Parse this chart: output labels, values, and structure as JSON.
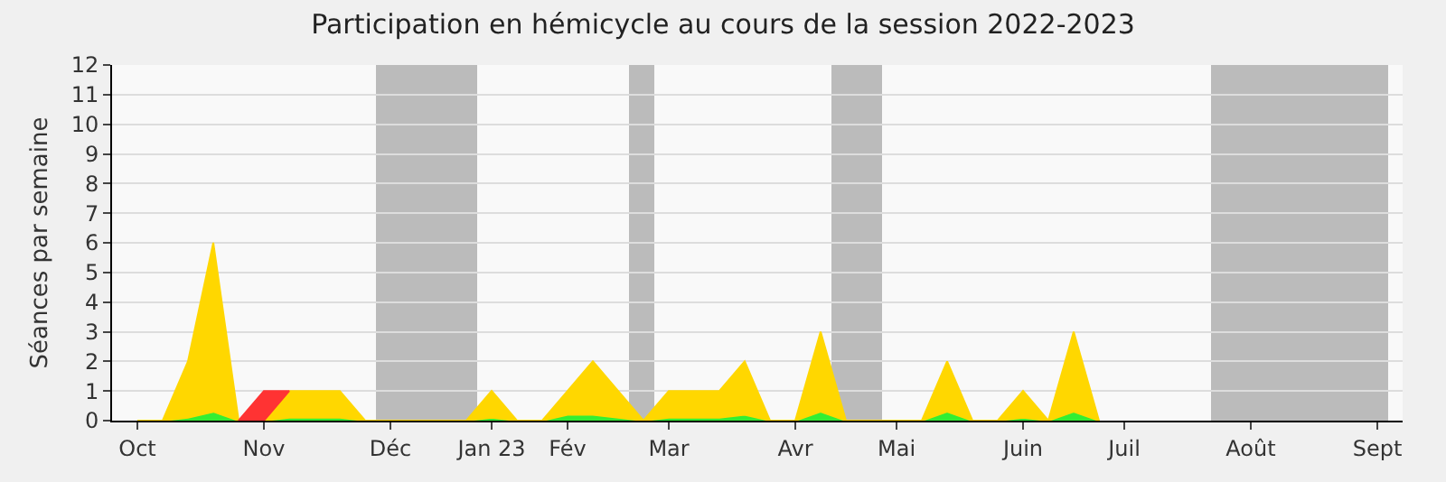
{
  "chart_data": {
    "type": "area",
    "title": "Participation en hémicycle au cours de la session 2022-2023",
    "ylabel": "Séances par semaine",
    "stacked": true,
    "x": [
      "2022-10-09",
      "2022-10-16",
      "2022-10-23",
      "2022-10-30",
      "2022-11-06",
      "2022-11-13",
      "2022-11-20",
      "2022-11-27",
      "2022-12-04",
      "2022-12-11",
      "2022-12-18",
      "2022-12-25",
      "2023-01-01",
      "2023-01-08",
      "2023-01-15",
      "2023-01-22",
      "2023-01-29",
      "2023-02-05",
      "2023-02-12",
      "2023-02-19",
      "2023-02-26",
      "2023-03-05",
      "2023-03-12",
      "2023-03-19",
      "2023-03-26",
      "2023-04-02",
      "2023-04-09",
      "2023-04-16",
      "2023-04-23",
      "2023-04-30",
      "2023-05-07",
      "2023-05-14",
      "2023-05-21",
      "2023-05-28",
      "2023-06-04",
      "2023-06-11",
      "2023-06-18",
      "2023-06-25",
      "2023-07-02"
    ],
    "series": [
      {
        "color": "#33ee33",
        "values": [
          0,
          0,
          0.1,
          0.3,
          0,
          0,
          0.1,
          0.1,
          0.1,
          0,
          0,
          0,
          0,
          0,
          0.1,
          0,
          0,
          0.2,
          0.2,
          0.1,
          0,
          0.1,
          0.1,
          0.1,
          0.2,
          0,
          0,
          0.3,
          0,
          0,
          0,
          0,
          0.3,
          0,
          0,
          0.1,
          0,
          0.3,
          0
        ]
      },
      {
        "color": "#ffd700",
        "values": [
          0,
          0,
          1.9,
          5.7,
          0,
          0,
          0.9,
          0.9,
          0.9,
          0,
          0,
          0,
          0,
          0,
          0.9,
          0,
          0,
          0.8,
          1.8,
          0.9,
          0,
          0.9,
          0.9,
          0.9,
          1.8,
          0,
          0,
          2.7,
          0,
          0,
          0,
          0,
          1.7,
          0,
          0,
          0.9,
          0,
          2.7,
          0
        ]
      },
      {
        "color": "#ff3333",
        "values": [
          null,
          null,
          null,
          null,
          0,
          1,
          0,
          null,
          null,
          null,
          null,
          null,
          null,
          null,
          null,
          null,
          null,
          null,
          null,
          null,
          null,
          null,
          null,
          null,
          null,
          null,
          null,
          null,
          null,
          null,
          null,
          null,
          null,
          null,
          null,
          null,
          null,
          null,
          null
        ]
      }
    ],
    "xlim": [
      "2022-10-02",
      "2023-09-24"
    ],
    "xticks": [
      {
        "value": "2022-10-09",
        "label": "Oct"
      },
      {
        "value": "2022-11-13",
        "label": "Nov"
      },
      {
        "value": "2022-12-18",
        "label": "Déc"
      },
      {
        "value": "2023-01-15",
        "label": "Jan 23"
      },
      {
        "value": "2023-02-05",
        "label": "Fév"
      },
      {
        "value": "2023-03-05",
        "label": "Mar"
      },
      {
        "value": "2023-04-09",
        "label": "Avr"
      },
      {
        "value": "2023-05-07",
        "label": "Mai"
      },
      {
        "value": "2023-06-11",
        "label": "Juin"
      },
      {
        "value": "2023-07-09",
        "label": "Juil"
      },
      {
        "value": "2023-08-13",
        "label": "Août"
      },
      {
        "value": "2023-09-17",
        "label": "Sept"
      }
    ],
    "ylim": [
      0,
      12
    ],
    "yticks": [
      0,
      1,
      2,
      3,
      4,
      5,
      6,
      7,
      8,
      9,
      10,
      11,
      12
    ],
    "bands": [
      {
        "axis": "x",
        "from": "2022-12-14",
        "to": "2023-01-11",
        "color": "#bbbbbb"
      },
      {
        "axis": "x",
        "from": "2023-02-22",
        "to": "2023-03-01",
        "color": "#bbbbbb"
      },
      {
        "axis": "x",
        "from": "2023-04-19",
        "to": "2023-05-03",
        "color": "#bbbbbb"
      },
      {
        "axis": "x",
        "from": "2023-08-02",
        "to": "2023-09-20",
        "color": "#bbbbbb"
      }
    ],
    "grid": "y"
  }
}
